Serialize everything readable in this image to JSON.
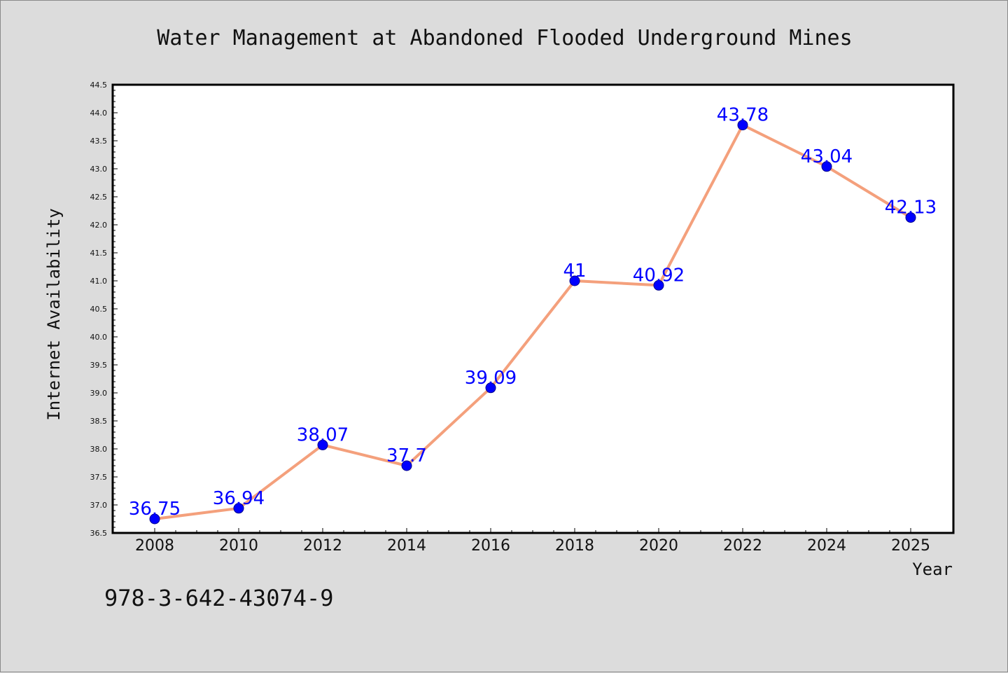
{
  "chart_data": {
    "type": "line",
    "title": "Water Management at Abandoned Flooded Underground Mines",
    "xlabel": "Year",
    "ylabel": "Internet Availability",
    "categories": [
      "2008",
      "2010",
      "2012",
      "2014",
      "2016",
      "2018",
      "2020",
      "2022",
      "2024",
      "2025"
    ],
    "series": [
      {
        "values": [
          36.75,
          36.94,
          38.07,
          37.7,
          39.09,
          41,
          40.92,
          43.78,
          43.04,
          42.13
        ],
        "data_labels": [
          "36.75",
          "36.94",
          "38.07",
          "37.7",
          "39.09",
          "41",
          "40.92",
          "43.78",
          "43.04",
          "42.13"
        ]
      }
    ],
    "ylim": [
      36.5,
      44.5
    ],
    "yticks": [
      "36.5",
      "37.0",
      "37.5",
      "38.0",
      "38.5",
      "39.0",
      "39.5",
      "40.0",
      "40.5",
      "41.0",
      "41.5",
      "42.0",
      "42.5",
      "43.0",
      "43.5",
      "44.0",
      "44.5"
    ],
    "grid": false,
    "legend": "none",
    "colors": {
      "line": "#f4a07c",
      "marker": "#0000ff",
      "data_label": "#0000ff",
      "background": "#dcdcdc",
      "plot_background": "#ffffff"
    }
  },
  "footer": {
    "isbn": "978-3-642-43074-9"
  }
}
